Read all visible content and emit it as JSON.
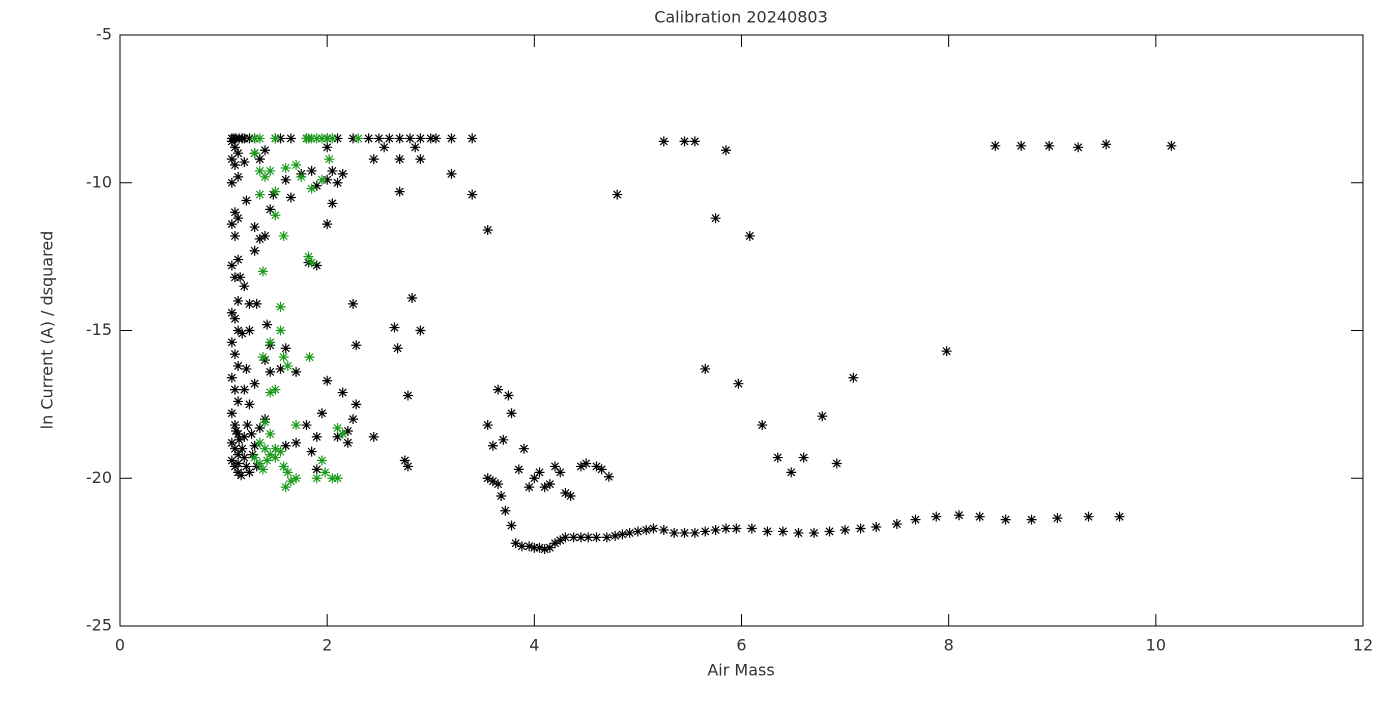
{
  "chart_data": {
    "type": "scatter",
    "title": "Calibration 20240803",
    "x_label": "Air Mass",
    "y_label": "ln Current (A) / dsquared",
    "xlim": [
      0,
      12
    ],
    "ylim": [
      -25,
      -5
    ],
    "xticks": [
      0,
      2,
      4,
      6,
      8,
      10,
      12
    ],
    "yticks": [
      -25,
      -20,
      -15,
      -10,
      -5
    ],
    "series": [
      {
        "color": "#000000",
        "x": [
          1.08,
          1.1,
          1.12,
          1.15,
          1.18,
          1.2,
          1.25,
          1.3,
          1.5,
          1.55,
          1.65,
          1.8,
          2.0,
          2.1,
          2.25,
          2.4,
          2.5,
          2.6,
          2.7,
          2.8,
          2.9,
          3.0,
          3.05,
          3.2,
          3.4,
          5.25,
          5.45,
          5.55,
          5.85,
          4.8,
          5.75,
          6.08,
          8.45,
          8.7,
          8.97,
          9.25,
          9.52,
          10.15,
          2.45,
          2.7,
          2.9,
          2.55,
          2.85,
          3.2,
          3.4,
          2.7,
          3.55,
          1.08,
          1.11,
          1.14,
          1.08,
          1.11,
          1.14,
          1.08,
          1.11,
          1.14,
          1.08,
          1.11,
          1.14,
          1.08,
          1.11,
          1.14,
          1.08,
          1.11,
          1.14,
          1.08,
          1.11,
          1.14,
          1.08,
          1.11,
          1.14,
          1.08,
          1.11,
          1.14,
          1.08,
          1.11,
          1.14,
          1.08,
          1.11,
          1.14,
          1.2,
          1.3,
          1.35,
          1.4,
          1.22,
          1.3,
          1.35,
          1.4,
          1.45,
          1.48,
          1.3,
          1.32,
          1.42,
          1.45,
          1.4,
          1.45,
          1.55,
          1.6,
          1.7,
          1.6,
          1.65,
          1.75,
          1.85,
          1.9,
          2.0,
          2.05,
          2.1,
          2.15,
          2.0,
          2.05,
          2.0,
          1.82,
          1.9,
          2.25,
          2.28,
          2.0,
          2.15,
          2.28,
          2.25,
          1.95,
          1.8,
          1.9,
          2.1,
          2.2,
          2.2,
          1.85,
          1.6,
          1.7,
          1.9,
          2.45,
          2.65,
          2.68,
          2.75,
          2.78,
          2.78,
          2.82,
          2.9,
          3.55,
          3.6,
          3.65,
          3.68,
          3.72,
          3.78,
          3.82,
          3.88,
          3.95,
          4.0,
          4.05,
          4.1,
          4.15,
          4.2,
          4.25,
          4.3,
          4.38,
          4.45,
          4.52,
          4.6,
          4.7,
          4.78,
          4.85,
          4.92,
          5.0,
          5.08,
          5.15,
          5.25,
          5.35,
          5.45,
          5.55,
          5.65,
          5.75,
          5.85,
          5.95,
          6.1,
          6.25,
          6.4,
          6.55,
          6.7,
          6.85,
          7.0,
          7.15,
          7.3,
          7.5,
          7.68,
          7.88,
          8.1,
          8.3,
          8.55,
          8.8,
          9.05,
          9.35,
          9.65,
          3.55,
          3.6,
          3.65,
          3.7,
          3.75,
          3.78,
          3.85,
          3.9,
          3.95,
          4.0,
          4.05,
          4.1,
          4.15,
          4.2,
          4.25,
          4.3,
          4.35,
          4.45,
          4.5,
          4.6,
          4.65,
          4.72,
          5.65,
          5.97,
          6.2,
          6.35,
          6.48,
          6.6,
          6.78,
          6.92,
          7.08,
          7.98,
          1.12,
          1.15,
          1.18,
          1.2,
          1.22,
          1.25,
          1.28,
          1.3,
          1.14,
          1.17,
          1.2,
          1.23,
          1.27,
          1.32,
          1.25,
          1.2,
          1.3,
          1.22,
          1.18,
          1.25,
          1.2,
          1.16,
          1.25,
          1.35,
          1.4
        ],
        "values": [
          -8.5,
          -8.5,
          -8.5,
          -8.5,
          -8.5,
          -8.5,
          -8.5,
          -8.5,
          -8.5,
          -8.5,
          -8.5,
          -8.5,
          -8.5,
          -8.5,
          -8.5,
          -8.5,
          -8.5,
          -8.5,
          -8.5,
          -8.5,
          -8.5,
          -8.5,
          -8.5,
          -8.5,
          -8.5,
          -8.6,
          -8.6,
          -8.6,
          -8.9,
          -10.4,
          -11.2,
          -11.8,
          -8.75,
          -8.75,
          -8.75,
          -8.8,
          -8.7,
          -8.75,
          -9.2,
          -9.2,
          -9.2,
          -8.8,
          -8.8,
          -9.7,
          -10.4,
          -10.3,
          -11.6,
          -8.6,
          -8.8,
          -9.0,
          -9.2,
          -9.4,
          -9.8,
          -10.0,
          -11.0,
          -11.2,
          -11.4,
          -11.8,
          -12.6,
          -12.8,
          -13.2,
          -14.0,
          -14.4,
          -14.6,
          -15.0,
          -15.4,
          -15.8,
          -16.2,
          -16.6,
          -17.0,
          -17.4,
          -17.8,
          -18.2,
          -18.5,
          -18.8,
          -19.0,
          -19.2,
          -19.4,
          -19.6,
          -19.8,
          -9.3,
          -9.0,
          -9.2,
          -8.9,
          -10.6,
          -11.5,
          -11.9,
          -11.8,
          -10.9,
          -10.4,
          -12.3,
          -14.1,
          -14.8,
          -15.5,
          -16.0,
          -16.4,
          -16.3,
          -15.6,
          -16.4,
          -9.9,
          -10.5,
          -9.7,
          -9.6,
          -10.1,
          -9.9,
          -9.6,
          -10.0,
          -9.7,
          -8.8,
          -10.7,
          -11.4,
          -12.7,
          -12.8,
          -14.1,
          -15.5,
          -16.7,
          -17.1,
          -17.5,
          -18.0,
          -17.8,
          -18.2,
          -18.6,
          -18.6,
          -18.4,
          -18.8,
          -19.1,
          -18.9,
          -18.8,
          -19.7,
          -18.6,
          -14.9,
          -15.6,
          -19.4,
          -19.6,
          -17.2,
          -13.9,
          -15.0,
          -20.0,
          -20.1,
          -20.2,
          -20.6,
          -21.1,
          -21.6,
          -22.2,
          -22.3,
          -22.3,
          -22.35,
          -22.35,
          -22.4,
          -22.35,
          -22.2,
          -22.1,
          -22.0,
          -22.0,
          -22.0,
          -22.0,
          -22.0,
          -22.0,
          -21.95,
          -21.9,
          -21.85,
          -21.8,
          -21.75,
          -21.7,
          -21.75,
          -21.85,
          -21.85,
          -21.85,
          -21.8,
          -21.75,
          -21.7,
          -21.7,
          -21.7,
          -21.8,
          -21.8,
          -21.85,
          -21.85,
          -21.8,
          -21.75,
          -21.7,
          -21.65,
          -21.55,
          -21.4,
          -21.3,
          -21.25,
          -21.3,
          -21.4,
          -21.4,
          -21.35,
          -21.3,
          -21.3,
          -18.2,
          -18.9,
          -17.0,
          -18.7,
          -17.2,
          -17.8,
          -19.7,
          -19.0,
          -20.3,
          -20.0,
          -19.8,
          -20.3,
          -20.2,
          -19.6,
          -19.8,
          -20.5,
          -20.6,
          -19.6,
          -19.5,
          -19.6,
          -19.7,
          -19.95,
          -16.3,
          -16.8,
          -18.2,
          -19.3,
          -19.8,
          -19.3,
          -17.9,
          -19.5,
          -16.6,
          -15.7,
          -18.4,
          -18.7,
          -19.0,
          -19.3,
          -19.6,
          -19.8,
          -19.2,
          -18.9,
          -19.5,
          -19.9,
          -18.6,
          -18.2,
          -18.5,
          -19.6,
          -17.5,
          -17.0,
          -16.8,
          -16.3,
          -15.1,
          -15.0,
          -13.5,
          -13.2,
          -14.1,
          -18.3,
          -18.0
        ]
      },
      {
        "color": "#1a9a1a",
        "x": [
          1.3,
          1.35,
          1.5,
          1.8,
          1.82,
          1.85,
          1.9,
          1.95,
          2.0,
          2.05,
          2.3,
          1.3,
          1.35,
          1.4,
          1.45,
          1.35,
          1.5,
          1.5,
          1.58,
          1.38,
          1.6,
          1.7,
          1.75,
          1.85,
          1.95,
          2.02,
          1.82,
          1.85,
          1.55,
          1.55,
          1.45,
          1.38,
          1.58,
          1.62,
          1.83,
          1.45,
          1.5,
          1.4,
          1.45,
          1.7,
          1.35,
          1.4,
          1.45,
          1.5,
          1.55,
          1.35,
          1.42,
          1.5,
          1.58,
          1.6,
          1.65,
          1.7,
          1.62,
          1.9,
          1.98,
          2.05,
          2.1,
          1.95,
          2.1,
          2.15,
          1.3,
          1.38
        ],
        "values": [
          -8.5,
          -8.5,
          -8.5,
          -8.5,
          -8.5,
          -8.5,
          -8.5,
          -8.5,
          -8.5,
          -8.5,
          -8.5,
          -9.0,
          -9.6,
          -9.8,
          -9.6,
          -10.4,
          -10.3,
          -11.1,
          -11.8,
          -13.0,
          -9.5,
          -9.4,
          -9.8,
          -10.2,
          -9.9,
          -9.2,
          -12.5,
          -12.7,
          -14.2,
          -15.0,
          -15.4,
          -15.9,
          -15.9,
          -16.2,
          -15.9,
          -17.1,
          -17.0,
          -18.1,
          -18.5,
          -18.2,
          -18.8,
          -19.0,
          -19.2,
          -19.3,
          -19.1,
          -19.5,
          -19.4,
          -19.0,
          -19.6,
          -20.3,
          -20.1,
          -20.0,
          -19.8,
          -20.0,
          -19.8,
          -20.0,
          -20.0,
          -19.4,
          -18.3,
          -18.5,
          -19.3,
          -19.7
        ]
      }
    ]
  }
}
